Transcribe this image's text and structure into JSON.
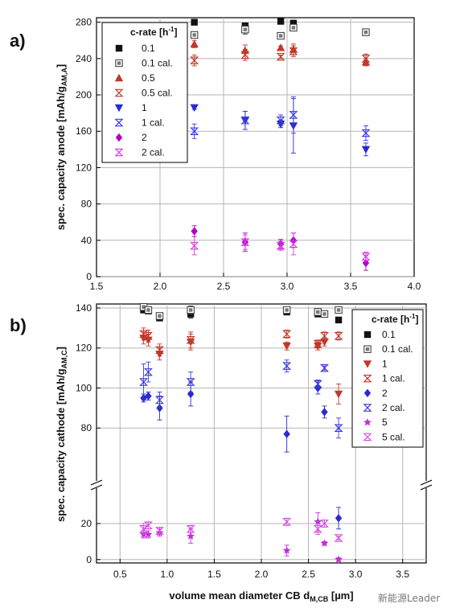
{
  "watermark": "新能源Leader",
  "chart_data": [
    {
      "panel": "a)",
      "type": "scatter",
      "ylabel": "spec. capacity anode [mAh/g",
      "ylabel_sub": "AM,A",
      "ylabel_end": "]",
      "xlim": [
        1.5,
        4.0
      ],
      "ylim": [
        0,
        285
      ],
      "xticks": [
        "1.5",
        "2.0",
        "2.5",
        "3.0",
        "3.5",
        "4.0"
      ],
      "xtick_values": [
        1.5,
        2.0,
        2.5,
        3.0,
        3.5,
        4.0
      ],
      "yticks": [
        "0",
        "40",
        "80",
        "120",
        "160",
        "200",
        "240",
        "280"
      ],
      "ytick_values": [
        0,
        40,
        80,
        120,
        160,
        200,
        240,
        280
      ],
      "grid": true,
      "legend_title": "c-rate [h",
      "legend_title_sup": "-1",
      "legend_title_end": "]",
      "legend_position": "top-left",
      "series": [
        {
          "name": "0.1",
          "marker": "square",
          "color": "#111111",
          "x": [
            2.27,
            2.67,
            2.95,
            3.05,
            3.62
          ],
          "y": [
            280,
            276,
            281,
            279,
            269
          ],
          "err": [
            0,
            0,
            0,
            0,
            0
          ]
        },
        {
          "name": "0.1 cal.",
          "marker": "square-open",
          "color": "#333333",
          "x": [
            2.27,
            2.67,
            2.95,
            3.05,
            3.62
          ],
          "y": [
            266,
            272,
            265,
            274,
            269
          ],
          "err": [
            3,
            5,
            2,
            3,
            0
          ]
        },
        {
          "name": "0.5",
          "marker": "triangle-up",
          "color": "#c0392b",
          "x": [
            2.27,
            2.67,
            2.95,
            3.05,
            3.62
          ],
          "y": [
            256,
            249,
            252,
            250,
            236
          ],
          "err": [
            4,
            6,
            2,
            6,
            4
          ]
        },
        {
          "name": "0.5 cal.",
          "marker": "hourglass",
          "color": "#c0392b",
          "x": [
            2.27,
            2.67,
            2.95,
            3.05,
            3.62
          ],
          "y": [
            238,
            244,
            242,
            248,
            240
          ],
          "err": [
            6,
            6,
            2,
            6,
            5
          ]
        },
        {
          "name": "1",
          "marker": "triangle-down",
          "color": "#2a2ad4",
          "x": [
            2.27,
            2.67,
            2.95,
            3.05,
            3.62
          ],
          "y": [
            186,
            172,
            168,
            166,
            140
          ],
          "err": [
            2,
            10,
            4,
            30,
            7
          ]
        },
        {
          "name": "1 cal.",
          "marker": "hourglass",
          "color": "#3a3ae0",
          "x": [
            2.27,
            2.67,
            2.95,
            3.05,
            3.62
          ],
          "y": [
            160,
            172,
            172,
            178,
            158
          ],
          "err": [
            8,
            10,
            6,
            20,
            8
          ]
        },
        {
          "name": "2",
          "marker": "diamond",
          "color": "#b000c8",
          "x": [
            2.27,
            2.67,
            2.95,
            3.05,
            3.62
          ],
          "y": [
            50,
            38,
            36,
            40,
            15
          ],
          "err": [
            6,
            10,
            5,
            8,
            8
          ]
        },
        {
          "name": "2 cal.",
          "marker": "hourglass",
          "color": "#d040e0",
          "x": [
            2.27,
            2.67,
            2.95,
            3.05,
            3.62
          ],
          "y": [
            34,
            38,
            34,
            36,
            22
          ],
          "err": [
            10,
            8,
            5,
            12,
            5
          ]
        }
      ]
    },
    {
      "panel": "b)",
      "type": "scatter",
      "ylabel": "spec. capacity cathode  [mAh/g",
      "ylabel_sub": "AM,C",
      "ylabel_end": "]",
      "xlabel": "volume mean diameter CB d",
      "xlabel_sub": "M,CB",
      "xlabel_end": " [µm]",
      "xlim": [
        0.25,
        3.75
      ],
      "ylim_upper": [
        60,
        142
      ],
      "ylim_lower": [
        -1,
        33
      ],
      "axis_break": true,
      "xticks": [
        "0.5",
        "1.0",
        "1.5",
        "2.0",
        "2.5",
        "3.0",
        "3.5"
      ],
      "xtick_values": [
        0.5,
        1.0,
        1.5,
        2.0,
        2.5,
        3.0,
        3.5
      ],
      "yticks_upper": [
        "80",
        "100",
        "120",
        "140"
      ],
      "ytick_values_upper": [
        80,
        100,
        120,
        140
      ],
      "yticks_lower": [
        "0",
        "20"
      ],
      "ytick_values_lower": [
        0,
        20
      ],
      "grid": true,
      "legend_title": "c-rate [h",
      "legend_title_sup": "-1",
      "legend_title_end": "]",
      "legend_position": "right",
      "series": [
        {
          "name": "0.1",
          "marker": "square",
          "color": "#111111",
          "x": [
            0.75,
            0.8,
            0.92,
            1.25,
            2.27,
            2.6,
            2.67,
            2.82
          ],
          "y": [
            139,
            138.5,
            135,
            137,
            138,
            137,
            137,
            134
          ],
          "err": [
            1,
            1,
            1,
            2,
            1,
            1,
            1,
            1
          ]
        },
        {
          "name": "0.1 cal.",
          "marker": "square-open",
          "color": "#333333",
          "x": [
            0.75,
            0.8,
            0.92,
            1.25,
            2.27,
            2.6,
            2.67,
            2.82
          ],
          "y": [
            140.5,
            139,
            136,
            139,
            139,
            138,
            137,
            139
          ],
          "err": [
            1,
            1,
            1,
            2,
            1,
            1,
            1,
            1
          ]
        },
        {
          "name": "1",
          "marker": "triangle-down",
          "color": "#c0392b",
          "x": [
            0.75,
            0.8,
            0.92,
            1.25,
            2.27,
            2.6,
            2.67,
            2.82
          ],
          "y": [
            125,
            124,
            117,
            123,
            121,
            121,
            123,
            97
          ],
          "err": [
            3,
            3,
            3,
            4,
            2,
            2,
            2,
            5
          ]
        },
        {
          "name": "1 cal.",
          "marker": "hourglass",
          "color": "#c0392b",
          "x": [
            0.75,
            0.8,
            0.92,
            1.25,
            2.27,
            2.6,
            2.67,
            2.82
          ],
          "y": [
            127,
            126,
            119,
            124,
            127,
            122,
            126,
            126
          ],
          "err": [
            3,
            3,
            3,
            4,
            2,
            2,
            2,
            2
          ]
        },
        {
          "name": "2",
          "marker": "diamond",
          "color": "#2a2ad4",
          "x": [
            0.75,
            0.8,
            0.92,
            1.25,
            2.27,
            2.6,
            2.67,
            2.82
          ],
          "y": [
            95,
            96,
            90,
            97,
            77,
            100,
            88,
            23
          ],
          "err": [
            2,
            2,
            6,
            6,
            9,
            3,
            3,
            6
          ]
        },
        {
          "name": "2 cal.",
          "marker": "hourglass",
          "color": "#3a3ae0",
          "x": [
            0.75,
            0.8,
            0.92,
            1.25,
            2.27,
            2.6,
            2.67,
            2.82
          ],
          "y": [
            103,
            108,
            94,
            103,
            111,
            102,
            110,
            80
          ],
          "err": [
            9,
            5,
            4,
            5,
            3,
            2,
            1,
            5
          ]
        },
        {
          "name": "5",
          "marker": "star",
          "color": "#c030d8",
          "x": [
            0.75,
            0.8,
            0.92,
            1.25,
            2.27,
            2.6,
            2.67,
            2.82
          ],
          "y": [
            14,
            14,
            15,
            13,
            5,
            21,
            9,
            0
          ],
          "err": [
            2,
            2,
            2,
            4,
            3,
            5,
            1,
            1
          ]
        },
        {
          "name": "5 cal.",
          "marker": "hourglass",
          "color": "#d84ee8",
          "x": [
            0.75,
            0.8,
            0.92,
            1.25,
            2.27,
            2.6,
            2.67,
            2.82
          ],
          "y": [
            17,
            19,
            16,
            17,
            21,
            17,
            20,
            12
          ],
          "err": [
            3,
            2,
            2,
            2,
            2,
            3,
            2,
            1
          ]
        }
      ]
    }
  ]
}
